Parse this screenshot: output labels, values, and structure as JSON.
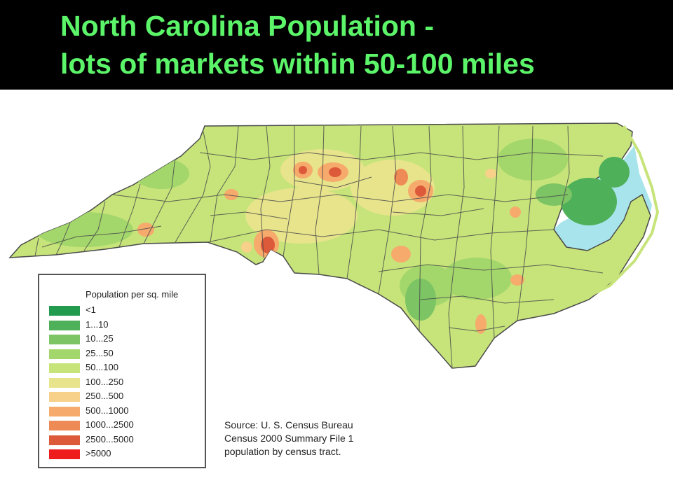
{
  "slide": {
    "title_line1": "North Carolina Population -",
    "title_line2": "lots of markets within 50-100 miles"
  },
  "legend": {
    "title": "Population per sq. mile",
    "items": [
      {
        "label": "<1",
        "color": "#239b4f"
      },
      {
        "label": "1...10",
        "color": "#4fb05a"
      },
      {
        "label": "10...25",
        "color": "#7cc464"
      },
      {
        "label": "25...50",
        "color": "#a3d76c"
      },
      {
        "label": "50...100",
        "color": "#c6e47a"
      },
      {
        "label": "100...250",
        "color": "#e8e48c"
      },
      {
        "label": "250...500",
        "color": "#f7d089"
      },
      {
        "label": "500...1000",
        "color": "#f6aa6c"
      },
      {
        "label": "1000...2500",
        "color": "#ee8a55"
      },
      {
        "label": "2500...5000",
        "color": "#dc5a3a"
      },
      {
        "label": ">5000",
        "color": "#ee1c1c"
      }
    ]
  },
  "source": {
    "line1": "Source: U. S. Census Bureau",
    "line2": "Census 2000 Summary File 1",
    "line3": "population by census tract."
  },
  "colors": {
    "header_background": "#000000",
    "title_text": "#5cf56a",
    "water": "#a8e4ec",
    "county_border": "#4a4a4a"
  }
}
